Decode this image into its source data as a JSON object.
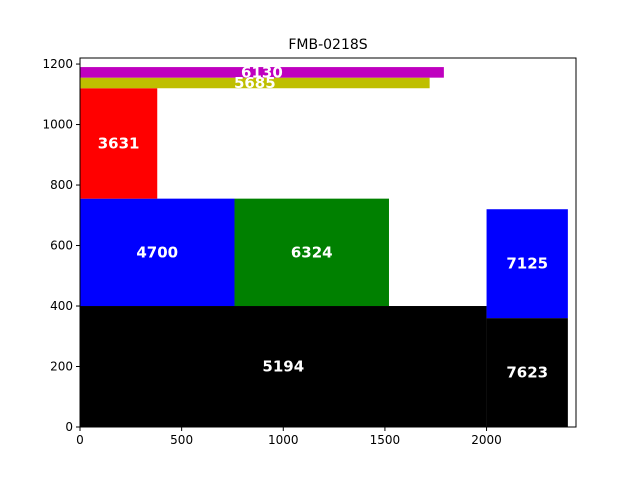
{
  "chart_data": {
    "type": "rectangle-packing",
    "title": "FMB-0218S",
    "xlabel": "",
    "ylabel": "",
    "xlim": [
      0,
      2440
    ],
    "ylim": [
      0,
      1220
    ],
    "xticks": [
      0,
      500,
      1000,
      1500,
      2000
    ],
    "yticks": [
      0,
      200,
      400,
      600,
      800,
      1000,
      1200
    ],
    "grid": false,
    "rectangles": [
      {
        "label": "5194",
        "x": 0,
        "y": 0,
        "w": 2000,
        "h": 400,
        "color": "#000000"
      },
      {
        "label": "7623",
        "x": 2000,
        "y": 0,
        "w": 400,
        "h": 360,
        "color": "#000000"
      },
      {
        "label": "4700",
        "x": 0,
        "y": 400,
        "w": 760,
        "h": 355,
        "color": "#0000ff"
      },
      {
        "label": "6324",
        "x": 760,
        "y": 400,
        "w": 760,
        "h": 355,
        "color": "#008000"
      },
      {
        "label": "7125",
        "x": 2000,
        "y": 360,
        "w": 400,
        "h": 360,
        "color": "#0000ff"
      },
      {
        "label": "3631",
        "x": 0,
        "y": 755,
        "w": 380,
        "h": 365,
        "color": "#ff0000"
      },
      {
        "label": "5685",
        "x": 0,
        "y": 1120,
        "w": 1720,
        "h": 35,
        "color": "#bfbf00"
      },
      {
        "label": "6130",
        "x": 0,
        "y": 1155,
        "w": 1790,
        "h": 35,
        "color": "#bf00bf"
      }
    ]
  }
}
